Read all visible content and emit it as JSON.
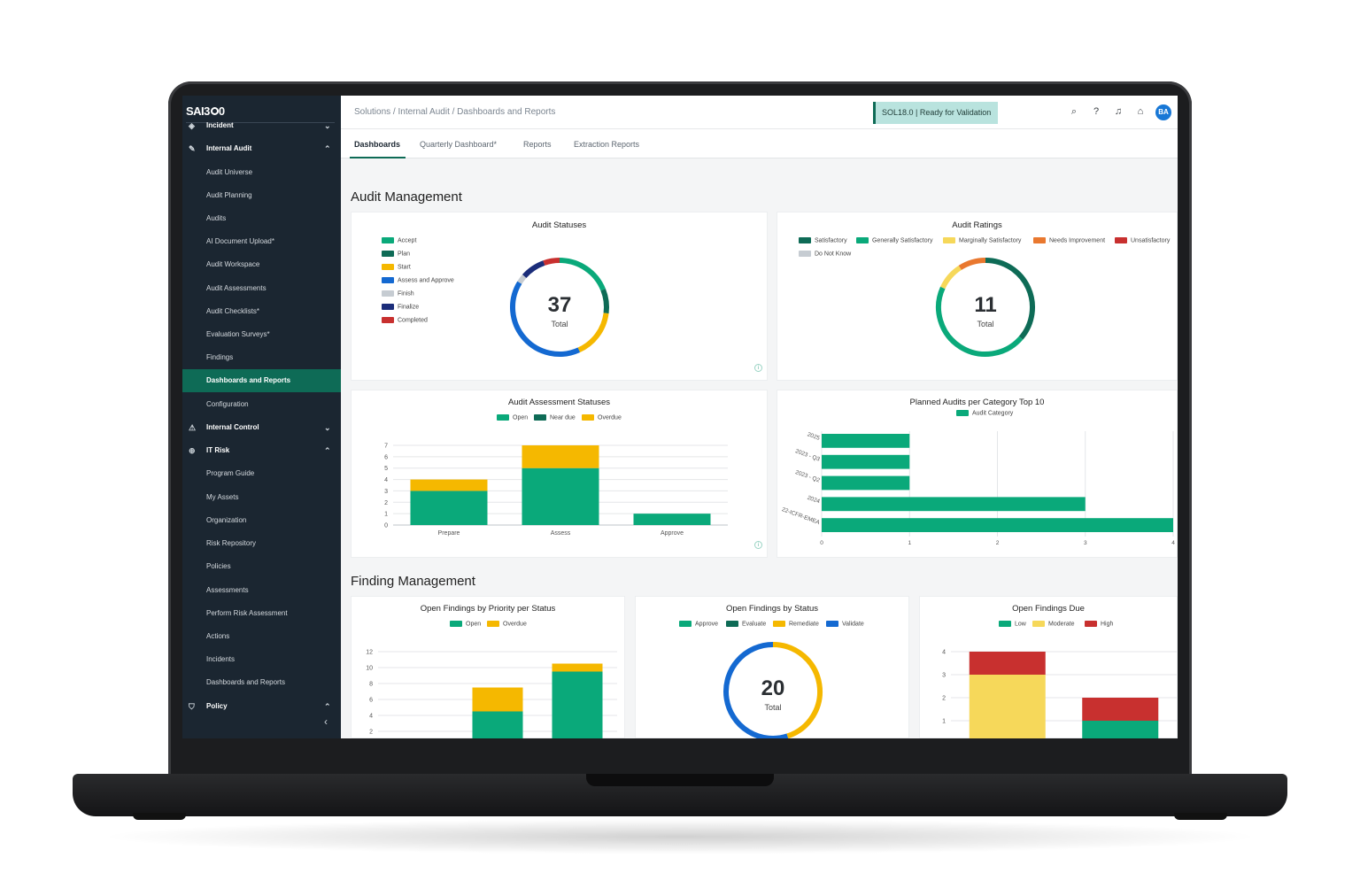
{
  "app": {
    "logo": "SAI360"
  },
  "sidebar": {
    "items": [
      {
        "label": "Incident"
      },
      {
        "label": "Internal Audit"
      },
      {
        "label": "Audit Universe"
      },
      {
        "label": "Audit Planning"
      },
      {
        "label": "Audits"
      },
      {
        "label": "AI Document Upload*"
      },
      {
        "label": "Audit Workspace"
      },
      {
        "label": "Audit Assessments"
      },
      {
        "label": "Audit Checklists*"
      },
      {
        "label": "Evaluation Surveys*"
      },
      {
        "label": "Findings"
      },
      {
        "label": "Dashboards and Reports"
      },
      {
        "label": "Configuration"
      },
      {
        "label": "Internal Control"
      },
      {
        "label": "IT Risk"
      },
      {
        "label": "Program Guide"
      },
      {
        "label": "My Assets"
      },
      {
        "label": "Organization"
      },
      {
        "label": "Risk Repository"
      },
      {
        "label": "Policies"
      },
      {
        "label": "Assessments"
      },
      {
        "label": "Perform Risk Assessment"
      },
      {
        "label": "Actions"
      },
      {
        "label": "Incidents"
      },
      {
        "label": "Dashboards and Reports"
      },
      {
        "label": "Policy"
      }
    ]
  },
  "header": {
    "breadcrumb": "Solutions / Internal Audit / Dashboards and Reports",
    "status": "SOL18.0 | Ready for Validation",
    "avatar": "BA"
  },
  "tabs": [
    {
      "label": "Dashboards"
    },
    {
      "label": "Quarterly Dashboard*"
    },
    {
      "label": "Reports"
    },
    {
      "label": "Extraction Reports"
    }
  ],
  "sections": {
    "audit_management": "Audit Management",
    "finding_management": "Finding Management"
  },
  "colors": {
    "green": "#0aa97a",
    "dark_green": "#0e6b56",
    "yellow": "#f5b800",
    "blue": "#1469d1",
    "grey": "#c6ccd2",
    "navy": "#1b2d7a",
    "red": "#c8302f",
    "light_yellow": "#f6d85a",
    "orange": "#e9782f"
  },
  "cards": {
    "audit_statuses": {
      "title": "Audit Statuses",
      "total": "37",
      "total_label": "Total",
      "legend": [
        "Accept",
        "Plan",
        "Start",
        "Assess and Approve",
        "Finish",
        "Finalize",
        "Completed"
      ]
    },
    "audit_ratings": {
      "title": "Audit Ratings",
      "total": "11",
      "total_label": "Total",
      "legend": [
        "Satisfactory",
        "Generally Satisfactory",
        "Marginally Satisfactory",
        "Needs Improvement",
        "Unsatisfactory",
        "Do Not Know"
      ]
    },
    "assessment_statuses": {
      "title": "Audit Assessment Statuses",
      "legend": [
        "Open",
        "Near due",
        "Overdue"
      ]
    },
    "planned_audits": {
      "title": "Planned Audits per Category Top 10",
      "legend": [
        "Audit Category"
      ]
    },
    "findings_priority": {
      "title": "Open Findings by Priority per Status",
      "legend": [
        "Open",
        "Overdue"
      ]
    },
    "findings_status": {
      "title": "Open Findings by Status",
      "total": "20",
      "total_label": "Total",
      "legend": [
        "Approve",
        "Evaluate",
        "Remediate",
        "Validate"
      ]
    },
    "findings_due": {
      "title": "Open Findings Due",
      "legend": [
        "Low",
        "Moderate",
        "High"
      ]
    }
  },
  "chart_data": [
    {
      "type": "pie",
      "title": "Audit Statuses",
      "categories": [
        "Accept",
        "Plan",
        "Start",
        "Assess and Approve",
        "Finish",
        "Finalize",
        "Completed"
      ],
      "values": [
        7,
        3,
        6,
        15,
        1,
        3,
        2
      ]
    },
    {
      "type": "pie",
      "title": "Audit Ratings",
      "categories": [
        "Satisfactory",
        "Generally Satisfactory",
        "Marginally Satisfactory",
        "Needs Improvement",
        "Unsatisfactory",
        "Do Not Know"
      ],
      "values": [
        4,
        5,
        1,
        1,
        0,
        0
      ]
    },
    {
      "type": "bar",
      "title": "Audit Assessment Statuses",
      "categories": [
        "Prepare",
        "Assess",
        "Approve"
      ],
      "series": [
        {
          "name": "Open",
          "values": [
            3,
            5,
            1
          ]
        },
        {
          "name": "Near due",
          "values": [
            0,
            0,
            0
          ]
        },
        {
          "name": "Overdue",
          "values": [
            1,
            2,
            0
          ]
        }
      ],
      "ylim": [
        0,
        7
      ],
      "yticks": [
        "0",
        "1",
        "2",
        "3",
        "4",
        "5",
        "6",
        "7"
      ]
    },
    {
      "type": "bar",
      "title": "Planned Audits per Category Top 10",
      "categories": [
        "2025",
        "2023 - Q3",
        "2023 - Q2",
        "2024",
        "22-ICFR-EMEA"
      ],
      "series": [
        {
          "name": "Audit Category",
          "values": [
            1,
            1,
            1,
            3,
            4
          ]
        }
      ],
      "xlim": [
        0,
        4
      ],
      "xticks": [
        "0",
        "1",
        "2",
        "3",
        "4"
      ]
    },
    {
      "type": "bar",
      "title": "Open Findings by Priority per Status",
      "series": [
        {
          "name": "Open",
          "values": [
            0.3,
            4.5,
            9.5
          ]
        },
        {
          "name": "Overdue",
          "values": [
            0,
            3,
            1
          ]
        }
      ],
      "ylim": [
        0,
        12
      ],
      "yticks": [
        "2",
        "4",
        "6",
        "8",
        "10",
        "12"
      ]
    },
    {
      "type": "pie",
      "title": "Open Findings by Status",
      "categories": [
        "Approve",
        "Evaluate",
        "Remediate",
        "Validate"
      ],
      "values": [
        0,
        0,
        9,
        11
      ]
    },
    {
      "type": "bar",
      "title": "Open Findings Due",
      "series": [
        {
          "name": "Low",
          "values": [
            0,
            1
          ]
        },
        {
          "name": "Moderate",
          "values": [
            3,
            0
          ]
        },
        {
          "name": "High",
          "values": [
            1,
            1
          ]
        }
      ],
      "ylim": [
        0,
        4
      ],
      "yticks": [
        "1",
        "2",
        "3",
        "4"
      ]
    }
  ]
}
